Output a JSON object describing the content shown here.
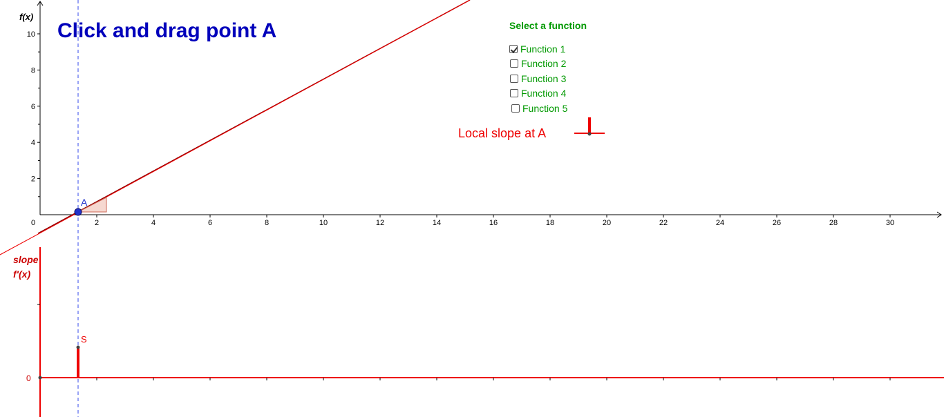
{
  "title": "Click and drag point A",
  "axes": {
    "top": {
      "ylabel": "f(x)",
      "x_ticks": [
        "2",
        "4",
        "6",
        "8",
        "10",
        "12",
        "14",
        "16",
        "18",
        "20",
        "22",
        "24",
        "26",
        "28",
        "30"
      ],
      "y_ticks": [
        "2",
        "4",
        "6",
        "8",
        "10"
      ],
      "origin_label": "0"
    },
    "bottom": {
      "ylabel_line1": "slope",
      "ylabel_line2": "f'(x)",
      "zero_label": "0"
    }
  },
  "point_a": {
    "label": "A",
    "x": 1.3,
    "y": 0
  },
  "point_s": {
    "label": "S"
  },
  "function_panel": {
    "title": "Select a function",
    "options": [
      {
        "label": "Function 1",
        "checked": true
      },
      {
        "label": "Function 2",
        "checked": false
      },
      {
        "label": "Function 3",
        "checked": false
      },
      {
        "label": "Function 4",
        "checked": false
      },
      {
        "label": "Function 5",
        "checked": false
      }
    ]
  },
  "local_slope_label": "Local slope at A",
  "colors": {
    "title": "#0000bb",
    "curve": "#8b0000",
    "tangent": "#ee0000",
    "point": "#2233cc",
    "panel": "#009900",
    "slope_axis": "#ee0000"
  }
}
